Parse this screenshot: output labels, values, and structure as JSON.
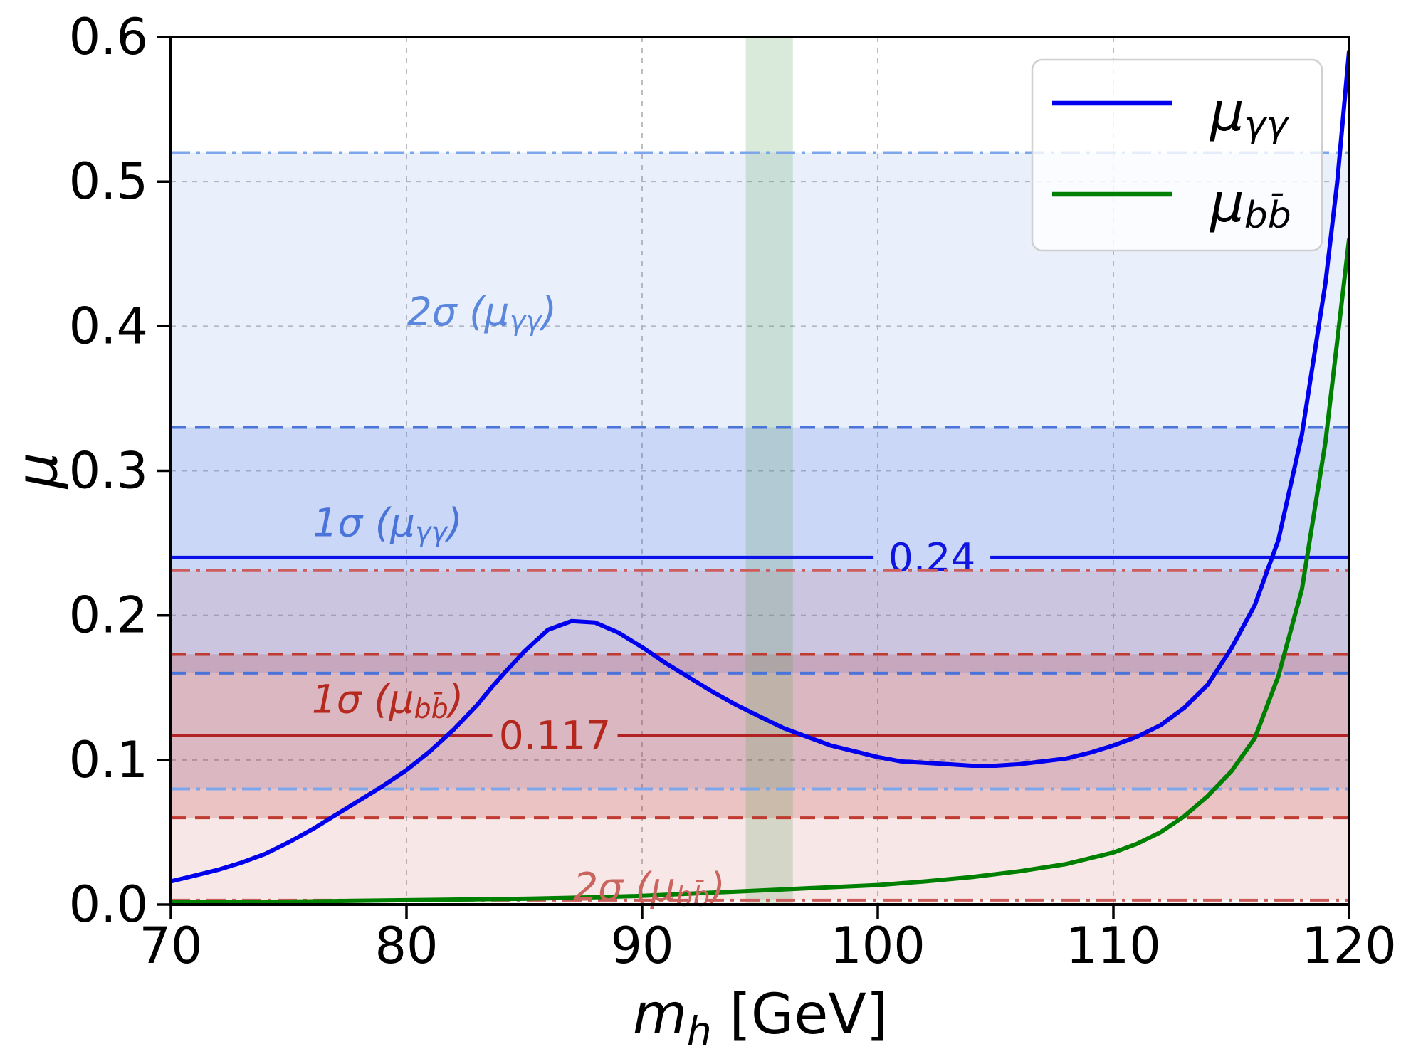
{
  "chart_data": {
    "type": "line",
    "title": "",
    "xlabel_parts": {
      "main": "m",
      "sub": "h",
      "post": " [GeV]"
    },
    "ylabel": "μ",
    "xlim": [
      70,
      120
    ],
    "ylim": [
      0,
      0.6
    ],
    "xticks": [
      "70",
      "80",
      "90",
      "100",
      "110",
      "120"
    ],
    "yticks": [
      "0.0",
      "0.1",
      "0.2",
      "0.3",
      "0.4",
      "0.5",
      "0.6"
    ],
    "grid": true,
    "legend_position": "upper right",
    "series": [
      {
        "id": "mu-gamma-gamma",
        "name": "μγγ",
        "color": "#0000ee",
        "points": [
          [
            70,
            0.016
          ],
          [
            71,
            0.02
          ],
          [
            72,
            0.024
          ],
          [
            73,
            0.029
          ],
          [
            74,
            0.035
          ],
          [
            75,
            0.043
          ],
          [
            76,
            0.052
          ],
          [
            77,
            0.062
          ],
          [
            78,
            0.072
          ],
          [
            79,
            0.082
          ],
          [
            80,
            0.093
          ],
          [
            81,
            0.106
          ],
          [
            82,
            0.121
          ],
          [
            83,
            0.138
          ],
          [
            83.6,
            0.15
          ],
          [
            84.2,
            0.161
          ],
          [
            85,
            0.175
          ],
          [
            86,
            0.19
          ],
          [
            87,
            0.196
          ],
          [
            88,
            0.195
          ],
          [
            89,
            0.188
          ],
          [
            90,
            0.178
          ],
          [
            91,
            0.167
          ],
          [
            92,
            0.157
          ],
          [
            93,
            0.147
          ],
          [
            94,
            0.138
          ],
          [
            95,
            0.13
          ],
          [
            96,
            0.122
          ],
          [
            97,
            0.116
          ],
          [
            98,
            0.11
          ],
          [
            99,
            0.106
          ],
          [
            100,
            0.102
          ],
          [
            101,
            0.099
          ],
          [
            102,
            0.098
          ],
          [
            103,
            0.097
          ],
          [
            104,
            0.096
          ],
          [
            105,
            0.096
          ],
          [
            106,
            0.097
          ],
          [
            107,
            0.099
          ],
          [
            108,
            0.101
          ],
          [
            109,
            0.105
          ],
          [
            110,
            0.11
          ],
          [
            111,
            0.116
          ],
          [
            112,
            0.124
          ],
          [
            113,
            0.136
          ],
          [
            114,
            0.152
          ],
          [
            115,
            0.177
          ],
          [
            116,
            0.207
          ],
          [
            117,
            0.252
          ],
          [
            118,
            0.325
          ],
          [
            119,
            0.43
          ],
          [
            119.5,
            0.5
          ],
          [
            120,
            0.59
          ]
        ]
      },
      {
        "id": "mu-bb",
        "name": "μbb̄",
        "color": "#008000",
        "points": [
          [
            70,
            0.0015
          ],
          [
            75,
            0.002
          ],
          [
            80,
            0.003
          ],
          [
            85,
            0.004
          ],
          [
            88,
            0.005
          ],
          [
            90,
            0.006
          ],
          [
            92,
            0.0075
          ],
          [
            94,
            0.009
          ],
          [
            96,
            0.0105
          ],
          [
            98,
            0.012
          ],
          [
            100,
            0.0135
          ],
          [
            102,
            0.016
          ],
          [
            104,
            0.019
          ],
          [
            106,
            0.023
          ],
          [
            108,
            0.028
          ],
          [
            110,
            0.036
          ],
          [
            111,
            0.042
          ],
          [
            112,
            0.05
          ],
          [
            113,
            0.061
          ],
          [
            114,
            0.075
          ],
          [
            115,
            0.092
          ],
          [
            116,
            0.115
          ],
          [
            117,
            0.158
          ],
          [
            118,
            0.218
          ],
          [
            119,
            0.32
          ],
          [
            119.5,
            0.39
          ],
          [
            120,
            0.46
          ]
        ]
      }
    ],
    "legend_entries": [
      {
        "main": "μ",
        "sub": "γγ",
        "color": "#0000ee"
      },
      {
        "main": "μ",
        "sub": "bb̄",
        "color": "#008000"
      }
    ],
    "bands": [
      {
        "name": "2sigma-gamma-gamma",
        "y0": 0.08,
        "y1": 0.52,
        "color": "rgba(100,149,237,0.14)"
      },
      {
        "name": "1sigma-gamma-gamma",
        "y0": 0.16,
        "y1": 0.33,
        "color": "rgba(65,105,225,0.18)"
      },
      {
        "name": "2sigma-bb",
        "y0": 0.003,
        "y1": 0.231,
        "color": "rgba(205,92,92,0.15)"
      },
      {
        "name": "1sigma-bb",
        "y0": 0.06,
        "y1": 0.173,
        "color": "rgba(178,34,34,0.18)"
      }
    ],
    "vertical_band": {
      "name": "95-gev-excess-band",
      "x0": 94.4,
      "x1": 96.4,
      "color": "rgba(85,160,85,0.22)"
    },
    "reference_lines": [
      {
        "id": "gamma-2sigma-upper",
        "value": 0.52,
        "style": "dashdot",
        "color": "#7da7ec",
        "width": 4
      },
      {
        "id": "gamma-1sigma-upper",
        "value": 0.33,
        "style": "dashed",
        "color": "#4a74da",
        "width": 4
      },
      {
        "id": "gamma-central",
        "value": 0.24,
        "style": "solid",
        "color": "#0a12e8",
        "width": 5,
        "label": "0.24",
        "label_x": 102.3,
        "label_gap": 82,
        "label_color": "#1016e0"
      },
      {
        "id": "bb-2sigma-upper",
        "value": 0.231,
        "style": "dashdot",
        "color": "#cd5c5c",
        "width": 4
      },
      {
        "id": "bb-1sigma-upper",
        "value": 0.173,
        "style": "dashed",
        "color": "#bf3a30",
        "width": 4
      },
      {
        "id": "gamma-1sigma-lower",
        "value": 0.16,
        "style": "dashed",
        "color": "#4a74da",
        "width": 4
      },
      {
        "id": "bb-central",
        "value": 0.117,
        "style": "solid",
        "color": "#b22222",
        "width": 4.5,
        "label": "0.117",
        "label_x": 86.3,
        "label_gap": 88,
        "label_color": "#b5261d"
      },
      {
        "id": "gamma-2sigma-lower",
        "value": 0.08,
        "style": "dashdot",
        "color": "#7da7ec",
        "width": 4
      },
      {
        "id": "bb-1sigma-lower",
        "value": 0.06,
        "style": "dashed",
        "color": "#bf3a30",
        "width": 4
      },
      {
        "id": "bb-2sigma-lower",
        "value": 0.003,
        "style": "dashdot",
        "color": "#cd5c5c",
        "width": 4
      }
    ],
    "annotations": [
      {
        "id": "label-2sigma-gamma",
        "pre": "2σ (μ",
        "sub": "γγ",
        "post": ")",
        "x": 83.2,
        "y": 0.41,
        "color": "#5b87dd"
      },
      {
        "id": "label-1sigma-gamma",
        "pre": "1σ (μ",
        "sub": "γγ",
        "post": ")",
        "x": 79.2,
        "y": 0.264,
        "color": "#4a74da"
      },
      {
        "id": "label-1sigma-bb",
        "pre": "1σ (μ",
        "sub": "bb̄",
        "post": ")",
        "x": 79.2,
        "y": 0.142,
        "color": "#b5291f"
      },
      {
        "id": "label-2sigma-bb",
        "pre": "2σ (μ",
        "sub": "bb̄",
        "post": ")",
        "x": 90.3,
        "y": 0.012,
        "color": "#c9655e"
      }
    ],
    "colors": {
      "grid": "#bdbdbd",
      "spine": "#000000",
      "legend_border": "#d0d0d0",
      "legend_fill": "rgba(255,255,255,0.8)"
    }
  }
}
